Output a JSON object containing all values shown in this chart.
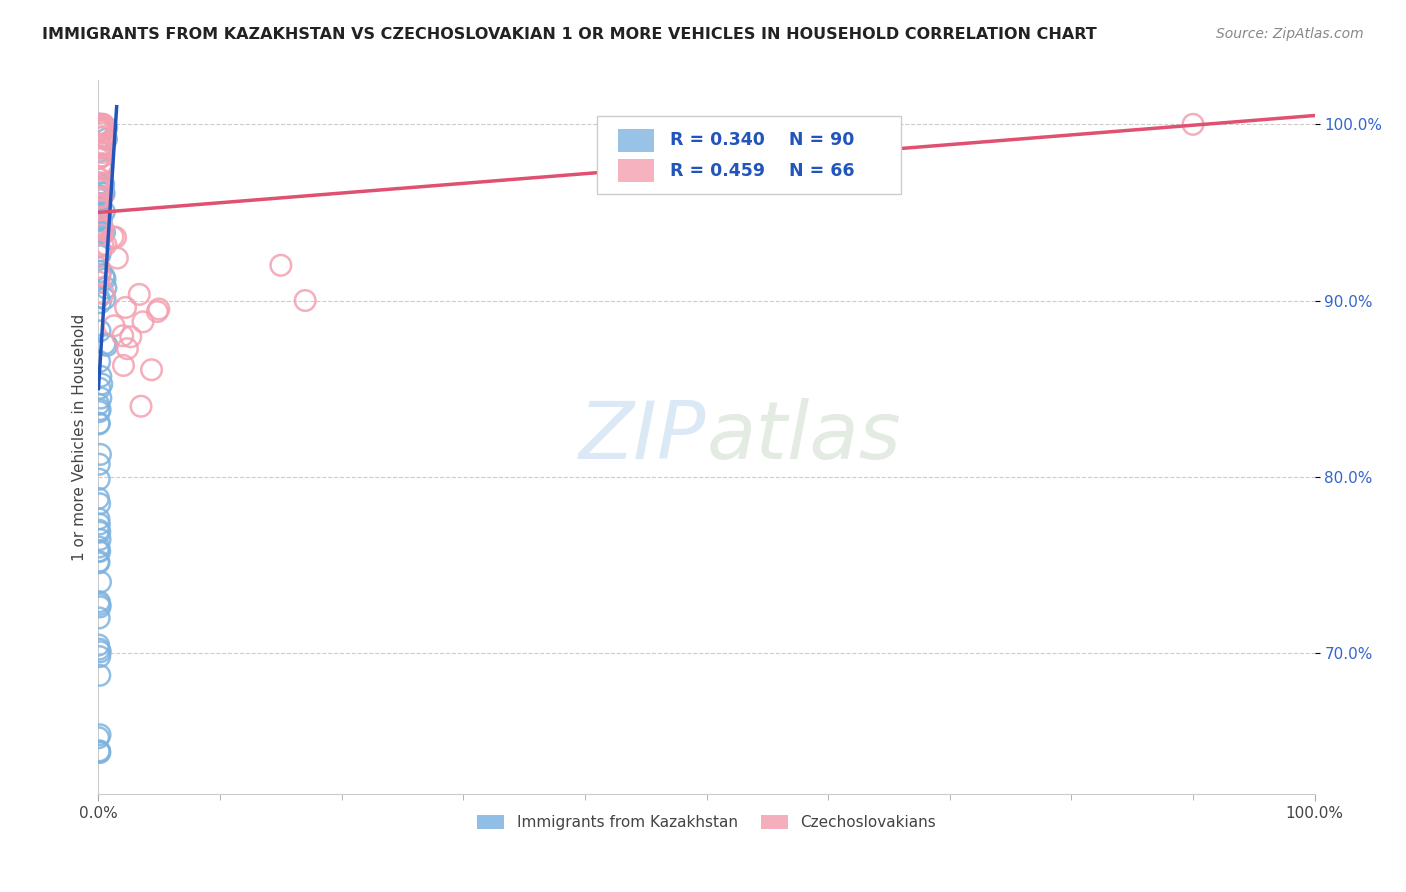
{
  "title": "IMMIGRANTS FROM KAZAKHSTAN VS CZECHOSLOVAKIAN 1 OR MORE VEHICLES IN HOUSEHOLD CORRELATION CHART",
  "source": "Source: ZipAtlas.com",
  "ylabel": "1 or more Vehicles in Household",
  "xmin": 0.0,
  "xmax": 100.0,
  "ymin": 62.0,
  "ymax": 102.5,
  "y_tick_values": [
    70.0,
    80.0,
    90.0,
    100.0
  ],
  "y_tick_labels": [
    "70.0%",
    "80.0%",
    "90.0%",
    "100.0%"
  ],
  "x_tick_values": [
    0.0,
    100.0
  ],
  "x_tick_labels": [
    "0.0%",
    "100.0%"
  ],
  "watermark_zip": "ZIP",
  "watermark_atlas": "atlas",
  "blue_R": 0.34,
  "blue_N": 90,
  "pink_R": 0.459,
  "pink_N": 66,
  "blue_color": "#7EB3E0",
  "pink_color": "#F4A0B0",
  "blue_edge_color": "#5A9FD4",
  "pink_edge_color": "#E87090",
  "blue_line_color": "#2255BB",
  "pink_line_color": "#E05070",
  "legend_label_blue": "Immigrants from Kazakhstan",
  "legend_label_pink": "Czechoslovakians",
  "title_fontsize": 11.5,
  "source_fontsize": 10,
  "tick_fontsize": 11,
  "legend_fontsize": 11,
  "ylabel_fontsize": 11
}
